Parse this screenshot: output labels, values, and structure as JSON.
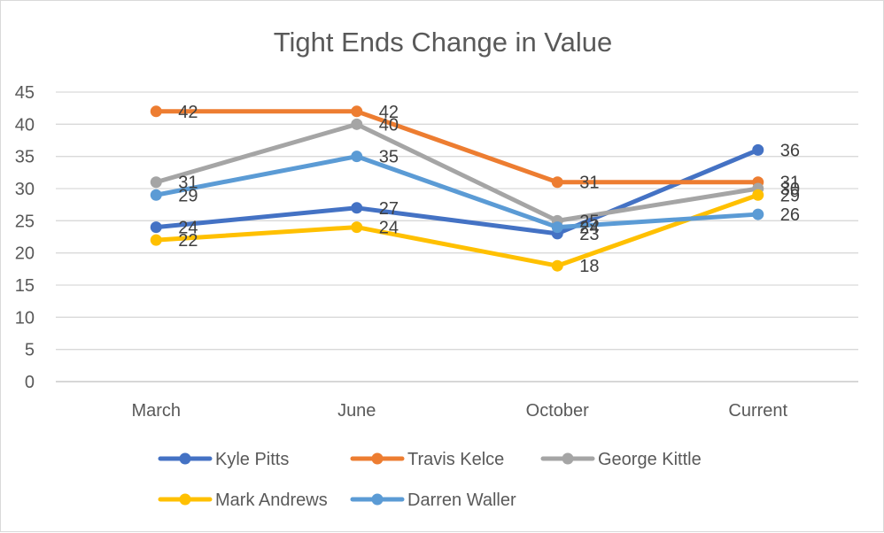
{
  "chart_data": {
    "type": "line",
    "title": "Tight Ends Change in Value",
    "categories": [
      "March",
      "June",
      "October",
      "Current"
    ],
    "ylim": [
      0,
      45
    ],
    "yticks": [
      0,
      5,
      10,
      15,
      20,
      25,
      30,
      35,
      40,
      45
    ],
    "grid": true,
    "legend": "bottom",
    "series": [
      {
        "name": "Kyle Pitts",
        "color": "#4472c4",
        "values": [
          24,
          27,
          23,
          36
        ]
      },
      {
        "name": "Travis Kelce",
        "color": "#ed7d31",
        "values": [
          42,
          42,
          31,
          31
        ]
      },
      {
        "name": "George Kittle",
        "color": "#a5a5a5",
        "values": [
          31,
          40,
          25,
          30
        ]
      },
      {
        "name": "Mark Andrews",
        "color": "#ffc000",
        "values": [
          22,
          24,
          18,
          29
        ]
      },
      {
        "name": "Darren Waller",
        "color": "#5b9bd5",
        "values": [
          29,
          35,
          24,
          26
        ]
      }
    ]
  }
}
